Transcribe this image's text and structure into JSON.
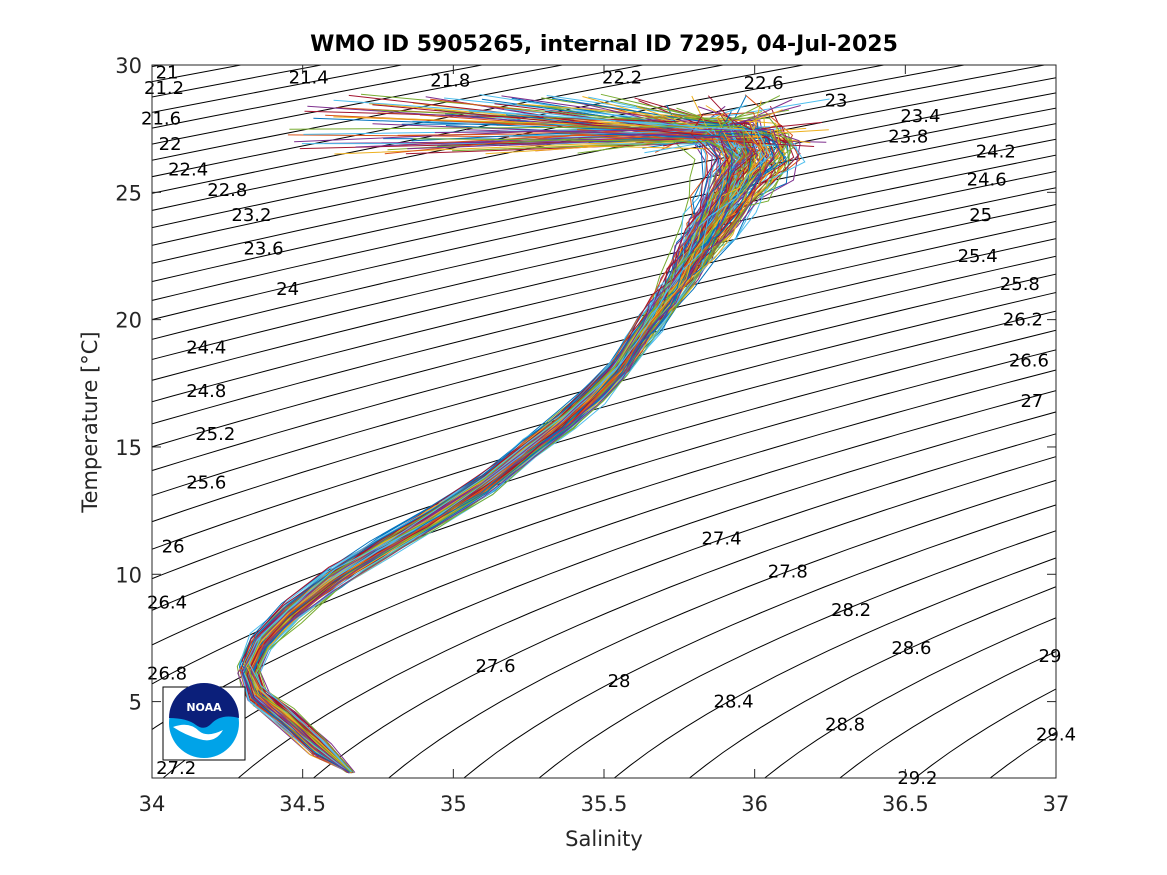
{
  "chart_data": {
    "type": "line",
    "title": "WMO ID 5905265, internal ID 7295, 04-Jul-2025",
    "xlabel": "Salinity",
    "ylabel": "Temperature [°C]",
    "xlim": [
      34,
      37
    ],
    "ylim": [
      2,
      30
    ],
    "x_ticks": [
      "34",
      "34.5",
      "35",
      "35.5",
      "36",
      "36.5",
      "37"
    ],
    "x_tick_values": [
      34,
      34.5,
      35,
      35.5,
      36,
      36.5,
      37
    ],
    "y_ticks": [
      "5",
      "10",
      "15",
      "20",
      "25",
      "30"
    ],
    "y_tick_values": [
      5,
      10,
      15,
      20,
      25,
      30
    ],
    "grid": false,
    "legend": "none",
    "density_contours": {
      "levels": [
        21,
        21.2,
        21.4,
        21.6,
        21.8,
        22,
        22.2,
        22.4,
        22.6,
        22.8,
        23,
        23.2,
        23.4,
        23.6,
        23.8,
        24,
        24.2,
        24.4,
        24.6,
        24.8,
        25,
        25.2,
        25.4,
        25.6,
        25.8,
        26,
        26.2,
        26.4,
        26.6,
        26.8,
        27,
        27.2,
        27.4,
        27.6,
        27.8,
        28,
        28.2,
        28.4,
        28.6,
        28.8,
        29,
        29.2,
        29.4
      ],
      "labels": [
        {
          "text": "21",
          "s": 34.05,
          "t": 29.7
        },
        {
          "text": "21.2",
          "s": 34.04,
          "t": 29.1
        },
        {
          "text": "21.4",
          "s": 34.52,
          "t": 29.5
        },
        {
          "text": "21.6",
          "s": 34.03,
          "t": 27.9
        },
        {
          "text": "21.8",
          "s": 34.99,
          "t": 29.4
        },
        {
          "text": "22",
          "s": 34.06,
          "t": 26.9
        },
        {
          "text": "22.2",
          "s": 35.56,
          "t": 29.5
        },
        {
          "text": "22.4",
          "s": 34.12,
          "t": 25.9
        },
        {
          "text": "22.6",
          "s": 36.03,
          "t": 29.3
        },
        {
          "text": "22.8",
          "s": 34.25,
          "t": 25.1
        },
        {
          "text": "23",
          "s": 36.27,
          "t": 28.6
        },
        {
          "text": "23.2",
          "s": 34.33,
          "t": 24.1
        },
        {
          "text": "23.4",
          "s": 36.55,
          "t": 28.0
        },
        {
          "text": "23.6",
          "s": 34.37,
          "t": 22.8
        },
        {
          "text": "23.8",
          "s": 36.51,
          "t": 27.2
        },
        {
          "text": "24",
          "s": 34.45,
          "t": 21.2
        },
        {
          "text": "24.2",
          "s": 36.8,
          "t": 26.6
        },
        {
          "text": "24.4",
          "s": 34.18,
          "t": 18.9
        },
        {
          "text": "24.6",
          "s": 36.77,
          "t": 25.5
        },
        {
          "text": "24.8",
          "s": 34.18,
          "t": 17.2
        },
        {
          "text": "25",
          "s": 36.75,
          "t": 24.1
        },
        {
          "text": "25.2",
          "s": 34.21,
          "t": 15.5
        },
        {
          "text": "25.4",
          "s": 36.74,
          "t": 22.5
        },
        {
          "text": "25.6",
          "s": 34.18,
          "t": 13.6
        },
        {
          "text": "25.8",
          "s": 36.88,
          "t": 21.4
        },
        {
          "text": "26",
          "s": 34.07,
          "t": 11.1
        },
        {
          "text": "26.2",
          "s": 36.89,
          "t": 20.0
        },
        {
          "text": "26.4",
          "s": 34.05,
          "t": 8.9
        },
        {
          "text": "26.6",
          "s": 36.91,
          "t": 18.4
        },
        {
          "text": "26.8",
          "s": 34.05,
          "t": 6.1
        },
        {
          "text": "27",
          "s": 36.92,
          "t": 16.8
        },
        {
          "text": "27.2",
          "s": 34.08,
          "t": 2.4
        },
        {
          "text": "27.4",
          "s": 35.89,
          "t": 11.4
        },
        {
          "text": "27.6",
          "s": 35.14,
          "t": 6.4
        },
        {
          "text": "27.8",
          "s": 36.11,
          "t": 10.1
        },
        {
          "text": "28",
          "s": 35.55,
          "t": 5.8
        },
        {
          "text": "28.2",
          "s": 36.32,
          "t": 8.6
        },
        {
          "text": "28.4",
          "s": 35.93,
          "t": 5.0
        },
        {
          "text": "28.6",
          "s": 36.52,
          "t": 7.1
        },
        {
          "text": "28.8",
          "s": 36.3,
          "t": 4.1
        },
        {
          "text": "29",
          "s": 36.98,
          "t": 6.8
        },
        {
          "text": "29.2",
          "s": 36.54,
          "t": 2.0
        },
        {
          "text": "29.4",
          "s": 37.0,
          "t": 3.7
        }
      ]
    },
    "profiles": {
      "count": 160,
      "mean_path": [
        {
          "s": 34.66,
          "t": 2.2
        },
        {
          "s": 34.55,
          "t": 3.2
        },
        {
          "s": 34.45,
          "t": 4.3
        },
        {
          "s": 34.35,
          "t": 5.2
        },
        {
          "s": 34.32,
          "t": 6.2
        },
        {
          "s": 34.36,
          "t": 7.3
        },
        {
          "s": 34.46,
          "t": 8.5
        },
        {
          "s": 34.6,
          "t": 9.8
        },
        {
          "s": 34.76,
          "t": 11.0
        },
        {
          "s": 34.93,
          "t": 12.2
        },
        {
          "s": 35.1,
          "t": 13.5
        },
        {
          "s": 35.24,
          "t": 14.8
        },
        {
          "s": 35.37,
          "t": 16.0
        },
        {
          "s": 35.47,
          "t": 17.1
        },
        {
          "s": 35.55,
          "t": 18.1
        },
        {
          "s": 35.6,
          "t": 19.0
        },
        {
          "s": 35.65,
          "t": 19.8
        },
        {
          "s": 35.7,
          "t": 20.7
        },
        {
          "s": 35.75,
          "t": 21.6
        },
        {
          "s": 35.8,
          "t": 22.6
        },
        {
          "s": 35.85,
          "t": 23.6
        },
        {
          "s": 35.9,
          "t": 24.6
        },
        {
          "s": 35.95,
          "t": 25.5
        },
        {
          "s": 36.0,
          "t": 26.4
        },
        {
          "s": 35.95,
          "t": 27.3
        },
        {
          "s": 35.8,
          "t": 28.0
        }
      ],
      "colors": [
        "#0072bd",
        "#d95319",
        "#edb120",
        "#7e2f8e",
        "#77ac30",
        "#4dbeee",
        "#a2142f"
      ]
    },
    "logo": {
      "text": "NOAA",
      "colors": [
        "#0b1f7a",
        "#00a3e8",
        "#ffffff"
      ]
    }
  }
}
